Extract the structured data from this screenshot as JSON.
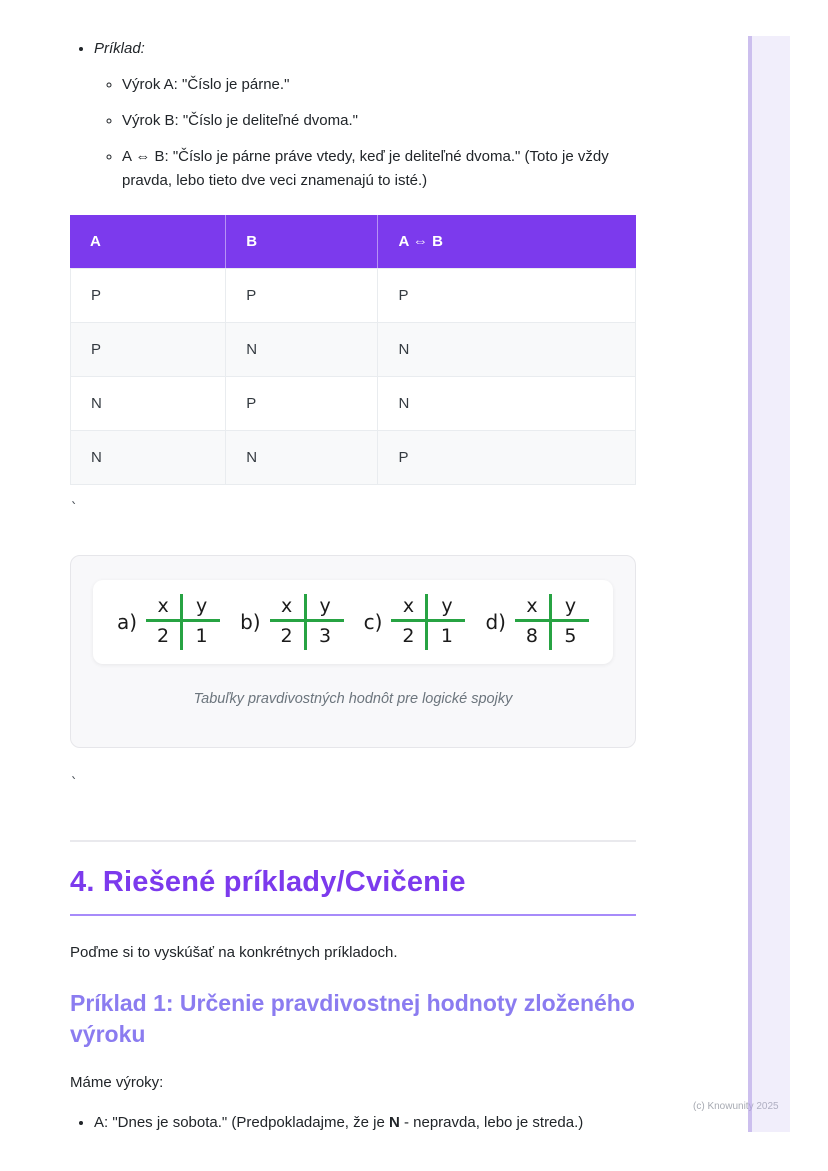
{
  "example_list": {
    "title": "Príklad:",
    "items": [
      "Výrok A: \"Číslo je párne.\"",
      "Výrok B: \"Číslo je deliteľné dvoma.\"",
      "A ⇔ B: \"Číslo je párne práve vtedy, keď je deliteľné dvoma.\" (Toto je vždy pravda, lebo tieto dve veci znamenajú to isté.)"
    ]
  },
  "truth_table": {
    "headers": [
      "A",
      "B",
      "A ⇔ B"
    ],
    "rows": [
      [
        "P",
        "P",
        "P"
      ],
      [
        "P",
        "N",
        "N"
      ],
      [
        "N",
        "P",
        "N"
      ],
      [
        "N",
        "N",
        "P"
      ]
    ]
  },
  "stray_mark": "`",
  "figure": {
    "tables": [
      {
        "label": "a)",
        "cells": [
          [
            "x",
            "y"
          ],
          [
            "2",
            "1"
          ]
        ]
      },
      {
        "label": "b)",
        "cells": [
          [
            "x",
            "y"
          ],
          [
            "2",
            "3"
          ]
        ]
      },
      {
        "label": "c)",
        "cells": [
          [
            "x",
            "y"
          ],
          [
            "2",
            "1"
          ]
        ]
      },
      {
        "label": "d)",
        "cells": [
          [
            "x",
            "y"
          ],
          [
            "8",
            "5"
          ]
        ]
      }
    ],
    "caption": "Tabuľky pravdivostných hodnôt pre logické spojky"
  },
  "section": {
    "heading": "4. Riešené príklady/Cvičenie",
    "intro": "Poďme si to vyskúšať na konkrétnych príkladoch.",
    "subheading": "Príklad 1: Určenie pravdivostnej hodnoty zloženého výroku",
    "lead": "Máme výroky:",
    "bullet_prefix": "A: \"Dnes je sobota.\" (Predpokladajme, že je ",
    "bullet_bold": "N",
    "bullet_suffix": " - nepravda, lebo je streda.)"
  },
  "footer": {
    "copyright": "(c) Knowunity 2025"
  },
  "colors": {
    "table_header": "#7c3aed",
    "heading": "#7c3aed",
    "subheading": "#8b7cf0",
    "figure_line_green": "#27a343",
    "strip": "#c9bcf0"
  }
}
